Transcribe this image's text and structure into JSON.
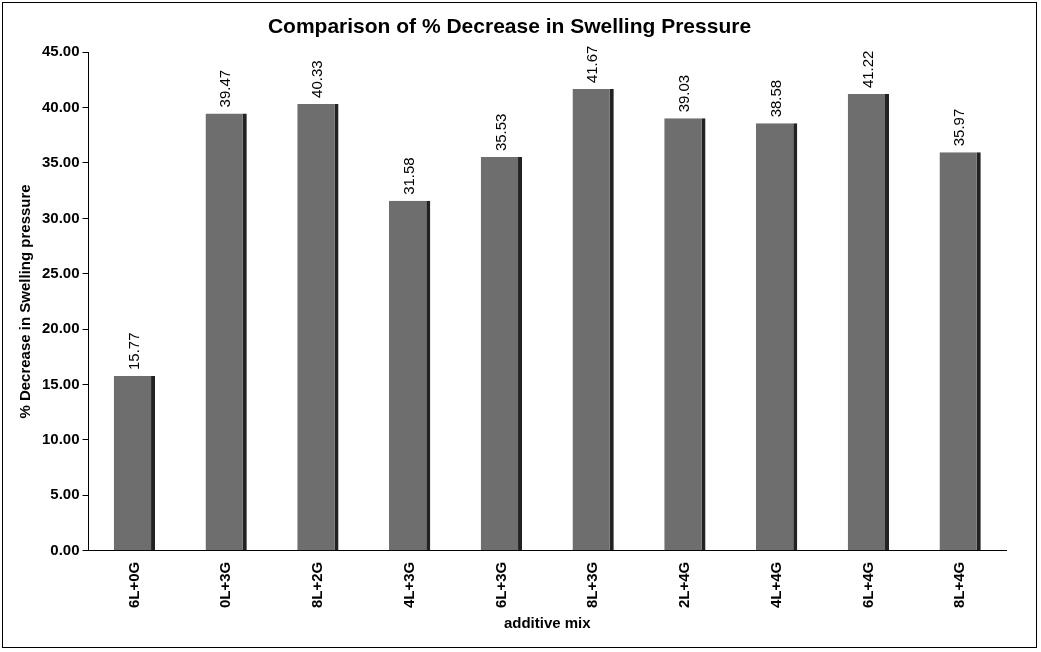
{
  "chart_data": {
    "type": "bar",
    "title": "Comparison of % Decrease in Swelling Pressure",
    "xlabel": "additive mix",
    "ylabel": "% Decrease in Swelling pressure",
    "categories": [
      "6L+0G",
      "0L+3G",
      "8L+2G",
      "4L+3G",
      "6L+3G",
      "8L+3G",
      "2L+4G",
      "4L+4G",
      "6L+4G",
      "8L+4G"
    ],
    "values": [
      15.77,
      39.47,
      40.33,
      31.58,
      35.53,
      41.67,
      39.03,
      38.58,
      41.22,
      35.97
    ],
    "color": "#6e6e6e",
    "data_labels": true,
    "grid": false,
    "legend": false,
    "ylim": [
      0,
      45
    ],
    "yticks": [
      {
        "value": 0,
        "label": "0.00"
      },
      {
        "value": 5,
        "label": "5.00"
      },
      {
        "value": 10,
        "label": "10.00"
      },
      {
        "value": 15,
        "label": "15.00"
      },
      {
        "value": 20,
        "label": "20.00"
      },
      {
        "value": 25,
        "label": "25.00"
      },
      {
        "value": 30,
        "label": "30.00"
      },
      {
        "value": 35,
        "label": "35.00"
      },
      {
        "value": 40,
        "label": "40.00"
      },
      {
        "value": 45,
        "label": "45.00"
      }
    ]
  }
}
